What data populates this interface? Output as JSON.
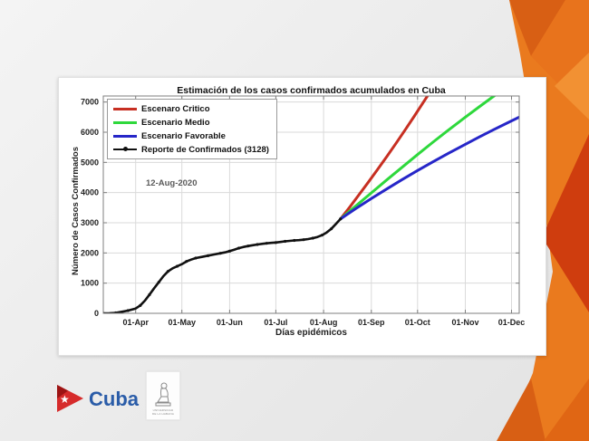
{
  "slide": {
    "footer": {
      "cuba_wordmark": "Cuba",
      "university_logo_lines": [
        "UNIVERSIDAD",
        "DE LA HABANA"
      ]
    },
    "decor_colors": {
      "orange": "#ea7a1e",
      "dark_orange": "#d85f14",
      "red_orange": "#cf3d0e",
      "light_orange": "#f29133"
    }
  },
  "chart_data": {
    "type": "line",
    "title": "Estimación de los casos confirmados acumulados en Cuba",
    "xlabel": "Días epidémicos",
    "ylabel": "Número de Casos Confirmados",
    "annotation": "12-Aug-2020",
    "grid": true,
    "legend_position": "top-left",
    "x_axis": {
      "unit": "days (epidemic days, day 0 ≈ 11-Mar-2020)",
      "xlim_days": [
        0,
        270
      ],
      "tick_days": [
        21,
        51,
        82,
        112,
        143,
        174,
        204,
        235,
        265
      ],
      "tick_labels": [
        "01-Apr",
        "01-May",
        "01-Jun",
        "01-Jul",
        "01-Aug",
        "01-Sep",
        "01-Oct",
        "01-Nov",
        "01-Dec"
      ]
    },
    "y_axis": {
      "ylim": [
        0,
        7200
      ],
      "ticks": [
        0,
        1000,
        2000,
        3000,
        4000,
        5000,
        6000,
        7000
      ]
    },
    "series": [
      {
        "name": "Escenaro Critico",
        "color": "#c72f22",
        "line_width": 3,
        "marker": "none",
        "points": [
          [
            154,
            3128
          ],
          [
            160,
            3520
          ],
          [
            166,
            3930
          ],
          [
            172,
            4340
          ],
          [
            178,
            4760
          ],
          [
            184,
            5190
          ],
          [
            190,
            5630
          ],
          [
            196,
            6080
          ],
          [
            202,
            6540
          ],
          [
            208,
            7010
          ],
          [
            213,
            7400
          ]
        ]
      },
      {
        "name": "Escenario Medio",
        "color": "#2ed83c",
        "line_width": 3,
        "marker": "none",
        "points": [
          [
            154,
            3128
          ],
          [
            164,
            3560
          ],
          [
            174,
            3990
          ],
          [
            184,
            4420
          ],
          [
            194,
            4840
          ],
          [
            204,
            5260
          ],
          [
            214,
            5670
          ],
          [
            224,
            6070
          ],
          [
            234,
            6460
          ],
          [
            244,
            6840
          ],
          [
            252,
            7140
          ],
          [
            258,
            7360
          ]
        ]
      },
      {
        "name": "Escenario Favorable",
        "color": "#2626c8",
        "line_width": 3,
        "marker": "none",
        "points": [
          [
            154,
            3128
          ],
          [
            164,
            3470
          ],
          [
            174,
            3800
          ],
          [
            184,
            4120
          ],
          [
            194,
            4430
          ],
          [
            204,
            4730
          ],
          [
            214,
            5020
          ],
          [
            224,
            5300
          ],
          [
            234,
            5570
          ],
          [
            244,
            5840
          ],
          [
            254,
            6100
          ],
          [
            262,
            6300
          ],
          [
            270,
            6500
          ]
        ]
      },
      {
        "name": "Reporte de Confirmados (3128)",
        "color": "#111111",
        "line_width": 2.6,
        "marker": "point",
        "points": [
          [
            0,
            0
          ],
          [
            4,
            2
          ],
          [
            8,
            15
          ],
          [
            12,
            50
          ],
          [
            16,
            90
          ],
          [
            21,
            160
          ],
          [
            24,
            260
          ],
          [
            27,
            420
          ],
          [
            30,
            620
          ],
          [
            33,
            830
          ],
          [
            36,
            1030
          ],
          [
            39,
            1230
          ],
          [
            42,
            1390
          ],
          [
            45,
            1490
          ],
          [
            48,
            1560
          ],
          [
            51,
            1630
          ],
          [
            54,
            1720
          ],
          [
            57,
            1780
          ],
          [
            60,
            1830
          ],
          [
            64,
            1870
          ],
          [
            68,
            1910
          ],
          [
            72,
            1950
          ],
          [
            76,
            1990
          ],
          [
            79,
            2020
          ],
          [
            82,
            2060
          ],
          [
            85,
            2110
          ],
          [
            88,
            2160
          ],
          [
            91,
            2200
          ],
          [
            94,
            2230
          ],
          [
            97,
            2255
          ],
          [
            100,
            2280
          ],
          [
            103,
            2300
          ],
          [
            106,
            2320
          ],
          [
            109,
            2335
          ],
          [
            112,
            2345
          ],
          [
            115,
            2365
          ],
          [
            118,
            2385
          ],
          [
            121,
            2400
          ],
          [
            124,
            2415
          ],
          [
            127,
            2425
          ],
          [
            130,
            2440
          ],
          [
            133,
            2460
          ],
          [
            136,
            2490
          ],
          [
            139,
            2530
          ],
          [
            142,
            2590
          ],
          [
            145,
            2680
          ],
          [
            148,
            2800
          ],
          [
            151,
            2960
          ],
          [
            154,
            3128
          ]
        ]
      }
    ]
  }
}
